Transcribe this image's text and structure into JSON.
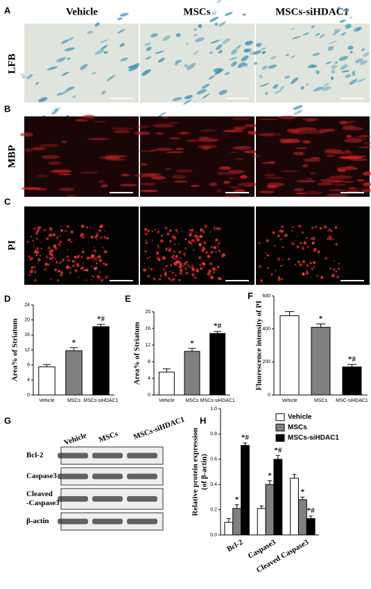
{
  "figure": {
    "column_headers": [
      "Vehicle",
      "MSCs",
      "MSCs-siHDAC1"
    ],
    "image_panels": [
      {
        "panel": "A",
        "row_label": "LFB"
      },
      {
        "panel": "B",
        "row_label": "MBP"
      },
      {
        "panel": "C",
        "row_label": "PI"
      }
    ],
    "blot": {
      "panel": "G",
      "lanes": [
        "Vehicle",
        "MSCs",
        "MSCs-siHDAC1"
      ],
      "rows": [
        [
          "Bcl-2"
        ],
        [
          "Caspase3"
        ],
        [
          "Cleaved",
          "-Caspase3"
        ],
        [
          "β-actin"
        ]
      ]
    }
  },
  "chart_data": [
    {
      "panel": "D",
      "type": "bar",
      "ylabel": "Area% of Striatum",
      "categories": [
        "Vehicle",
        "MSCs",
        "MSCs-siHDAC1"
      ],
      "values": [
        7.5,
        11.8,
        18.2
      ],
      "errors": [
        0.6,
        0.8,
        0.6
      ],
      "annotations": [
        null,
        "*",
        "*#"
      ],
      "colors": [
        "#ffffff",
        "#808080",
        "#000000"
      ],
      "ylim": [
        0,
        24
      ],
      "yticks": [
        0,
        4,
        8,
        12,
        16,
        20,
        24
      ]
    },
    {
      "panel": "E",
      "type": "bar",
      "ylabel": "Area% of Striatum",
      "categories": [
        "Vehicle",
        "MSCs",
        "MSCs-siHDAC1"
      ],
      "values": [
        5.5,
        10.5,
        14.8
      ],
      "errors": [
        0.8,
        0.7,
        0.5
      ],
      "annotations": [
        null,
        "*",
        "*#"
      ],
      "colors": [
        "#ffffff",
        "#808080",
        "#000000"
      ],
      "ylim": [
        0,
        20
      ],
      "yticks": [
        0,
        4,
        8,
        12,
        16,
        20
      ]
    },
    {
      "panel": "F",
      "type": "bar",
      "ylabel": "Fluorescence intensity of PI",
      "categories": [
        "Vehicle",
        "MSCs",
        "MSC-siHDAC1"
      ],
      "values": [
        480,
        410,
        170
      ],
      "errors": [
        25,
        20,
        15
      ],
      "annotations": [
        null,
        "*",
        "*#"
      ],
      "colors": [
        "#ffffff",
        "#808080",
        "#000000"
      ],
      "ylim": [
        0,
        600
      ],
      "yticks": [
        0,
        200,
        400,
        600
      ]
    },
    {
      "panel": "H",
      "type": "bar",
      "ylabel": [
        "Relative protein expression",
        "(of β-actin)"
      ],
      "categories": [
        "Bcl-2",
        "Caspase3",
        "Cleaved Caspase3"
      ],
      "series": [
        {
          "name": "Vehicle",
          "color": "#ffffff",
          "values": [
            0.1,
            0.21,
            0.45
          ],
          "errors": [
            0.03,
            0.02,
            0.03
          ]
        },
        {
          "name": "MSCs",
          "color": "#808080",
          "values": [
            0.21,
            0.4,
            0.28
          ],
          "errors": [
            0.03,
            0.03,
            0.02
          ],
          "annotations": [
            "*",
            "*",
            "*"
          ]
        },
        {
          "name": "MSCs-siHDAC1",
          "color": "#000000",
          "values": [
            0.71,
            0.6,
            0.13
          ],
          "errors": [
            0.02,
            0.03,
            0.02
          ],
          "annotations": [
            "*#",
            "*#",
            "*#"
          ]
        }
      ],
      "ylim": [
        0,
        1
      ],
      "yticks": [
        {
          "value": 0,
          "label": "0.0"
        },
        0.2,
        0.4,
        0.6,
        0.8,
        {
          "value": 1,
          "label": "1.0"
        }
      ],
      "legend": "upper-right"
    }
  ]
}
